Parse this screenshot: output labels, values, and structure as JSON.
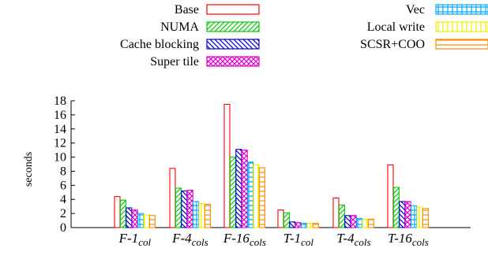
{
  "chart_data": {
    "type": "bar",
    "ylabel": "seconds",
    "xlabel": "",
    "ylim": [
      0,
      18
    ],
    "yticks": [
      0,
      2,
      4,
      6,
      8,
      10,
      12,
      14,
      16,
      18
    ],
    "grid": false,
    "legend_placement": "top",
    "categories": [
      {
        "main": "F-1",
        "sub": "col"
      },
      {
        "main": "F-4",
        "sub": "cols"
      },
      {
        "main": "F-16",
        "sub": "cols"
      },
      {
        "main": "T-1",
        "sub": "col"
      },
      {
        "main": "T-4",
        "sub": "cols"
      },
      {
        "main": "T-16",
        "sub": "cols"
      }
    ],
    "series": [
      {
        "name": "Base",
        "color": "#ff0000",
        "pattern": "none",
        "values": [
          4.4,
          8.4,
          17.5,
          2.5,
          4.2,
          8.9
        ]
      },
      {
        "name": "NUMA",
        "color": "#00cc00",
        "pattern": "diag-right",
        "values": [
          3.9,
          5.6,
          10.0,
          2.1,
          3.2,
          5.7
        ]
      },
      {
        "name": "Cache blocking",
        "color": "#0000cc",
        "pattern": "diag-left",
        "values": [
          2.8,
          5.2,
          11.1,
          0.8,
          1.7,
          3.7
        ]
      },
      {
        "name": "Super tile",
        "color": "#e000c8",
        "pattern": "cross",
        "values": [
          2.5,
          5.3,
          11.0,
          0.7,
          1.7,
          3.7
        ]
      },
      {
        "name": "Vec",
        "color": "#00aaff",
        "pattern": "grid",
        "values": [
          2.0,
          3.7,
          9.3,
          0.6,
          1.3,
          3.1
        ]
      },
      {
        "name": "Local write",
        "color": "#eeee00",
        "pattern": "vertical",
        "values": [
          1.8,
          3.4,
          8.9,
          0.6,
          1.2,
          2.9
        ]
      },
      {
        "name": "SCSR+COO",
        "color": "#ff8800",
        "pattern": "horizontal",
        "values": [
          1.7,
          3.3,
          8.5,
          0.6,
          1.2,
          2.7
        ]
      }
    ]
  }
}
